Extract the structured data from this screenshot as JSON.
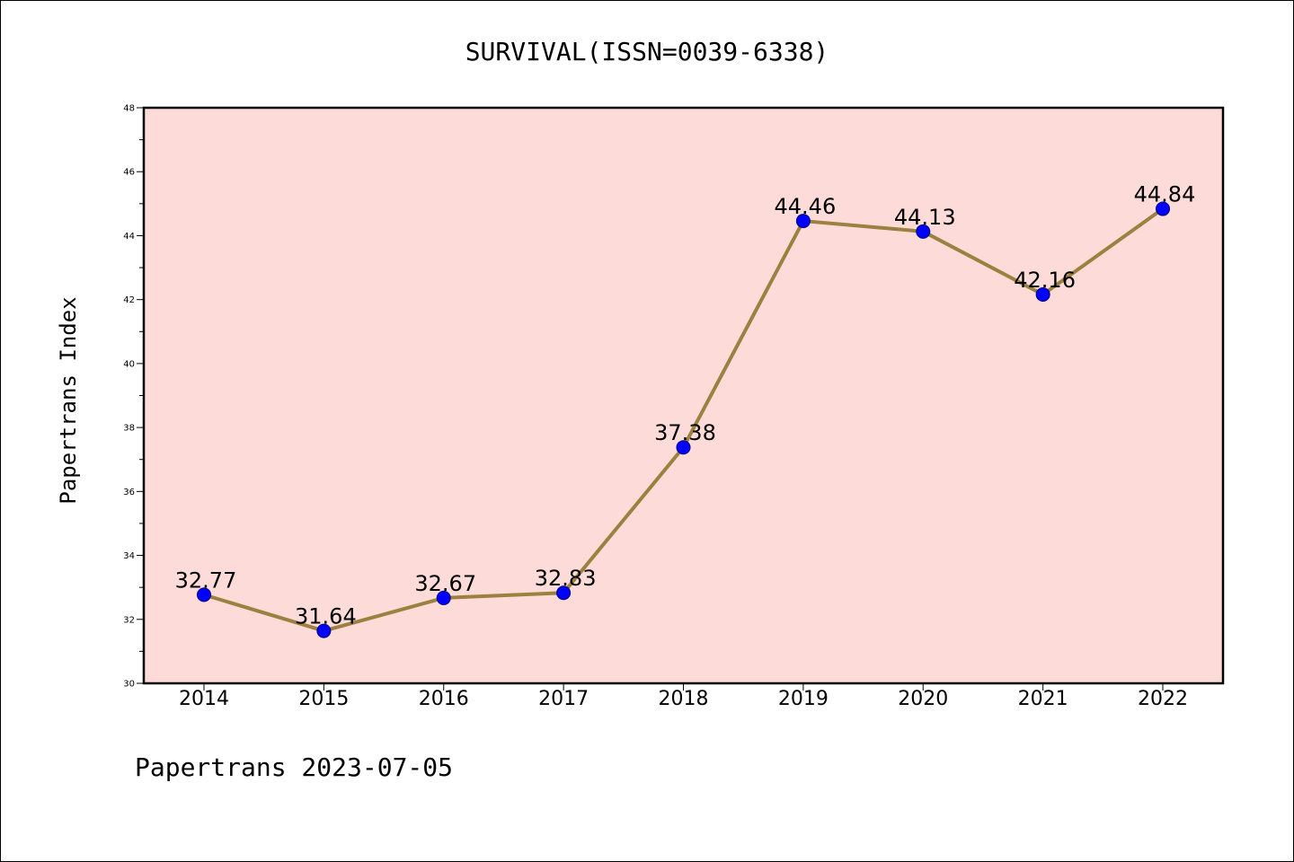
{
  "chart_data": {
    "type": "line",
    "title": "SURVIVAL(ISSN=0039-6338)",
    "xlabel": "",
    "ylabel": "Papertrans Index",
    "categories": [
      "2014",
      "2015",
      "2016",
      "2017",
      "2018",
      "2019",
      "2020",
      "2021",
      "2022"
    ],
    "series": [
      {
        "name": "Papertrans Index",
        "values": [
          32.77,
          31.64,
          32.67,
          32.83,
          37.38,
          44.46,
          44.13,
          42.16,
          44.84
        ],
        "labels": [
          "32.77",
          "31.64",
          "32.67",
          "32.83",
          "37.38",
          "44.46",
          "44.13",
          "42.16",
          "44.84"
        ]
      }
    ],
    "ylim": [
      30,
      48
    ],
    "yticks": [
      30,
      32,
      34,
      36,
      38,
      40,
      42,
      44,
      46,
      48
    ],
    "grid": false,
    "footer": "Papertrans 2023-07-05",
    "colors": {
      "plot_background": "#fddbd8",
      "line": "#9b8040",
      "marker": "#0000ff",
      "axis": "#000000"
    }
  }
}
